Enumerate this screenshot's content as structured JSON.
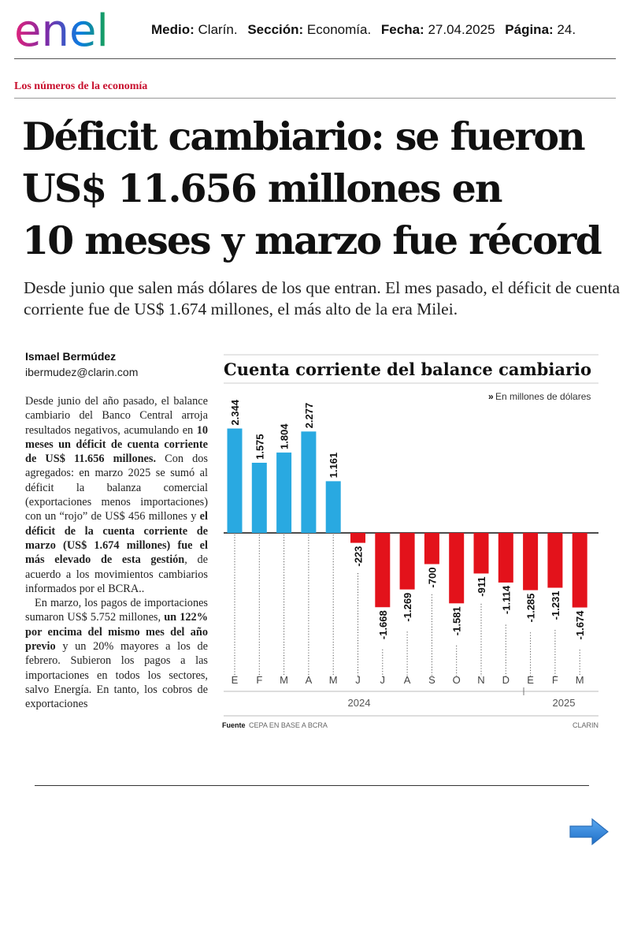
{
  "logo": {
    "text": "enel",
    "colors": [
      "#e1227a",
      "#7b2ca8",
      "#0a7ce0",
      "#18a44a"
    ]
  },
  "meta": {
    "medio_label": "Medio:",
    "medio": "Clarín.",
    "seccion_label": "Sección:",
    "seccion": "Economía.",
    "fecha_label": "Fecha:",
    "fecha": "27.04.2025",
    "pagina_label": "Página:",
    "pagina": "24."
  },
  "section": "Los números de la economía",
  "headline": [
    "Déficit cambiario: se fueron",
    "US$ 11.656 millones en",
    "10 meses y marzo fue récord"
  ],
  "subtitle": "Desde junio que salen más dólares de los que entran. El mes pasado, el déficit de cuenta corriente fue de US$ 1.674 millones, el más alto de la era Milei.",
  "author": {
    "name": "Ismael Bermúdez",
    "email": "ibermudez@clarin.com"
  },
  "body": {
    "p1_a": "Desde junio del año pasado, el balance cambiario del Banco Central arroja resultados negativos, acumulando en ",
    "p1_b": "10 meses un déficit de cuenta corriente de US$ 11.656 millones.",
    "p1_c": " Con dos agregados: en marzo 2025 se sumó al déficit la balanza comercial (exportaciones menos importaciones) con un “rojo” de US$ 456 millones y ",
    "p1_d": "el déficit de la cuenta corriente de marzo (US$ 1.674 millones) fue el más elevado de esta gestión",
    "p1_e": ", de acuerdo a los movimientos cambiarios informados por el BCRA..",
    "p2_a": "En marzo, los pagos de importaciones sumaron US$ 5.752 millones, ",
    "p2_b": "un 122% por encima del mismo mes del año previo",
    "p2_c": " y un 20% mayores a los de febrero. Subieron los pagos a las importaciones en todos los sectores, salvo Energía. En tanto, los cobros de exportaciones"
  },
  "chart_data": {
    "type": "bar",
    "title": "Cuenta corriente del balance cambiario",
    "unit_note": "En millones de dólares",
    "categories": [
      "E",
      "F",
      "M",
      "A",
      "M",
      "J",
      "J",
      "A",
      "S",
      "O",
      "N",
      "D",
      "E",
      "F",
      "M"
    ],
    "values": [
      2344,
      1575,
      1804,
      2277,
      1161,
      -223,
      -1668,
      -1269,
      -700,
      -1581,
      -911,
      -1114,
      -1285,
      -1231,
      -1674
    ],
    "value_labels": [
      "2.344",
      "1.575",
      "1.804",
      "2.277",
      "1.161",
      "-223",
      "-1.668",
      "-1.269",
      "-700",
      "-1.581",
      "-911",
      "-1.114",
      "-1.285",
      "-1.231",
      "-1.674"
    ],
    "year_labels": [
      "2024",
      "2025"
    ],
    "colors": {
      "positive": "#29a9e1",
      "negative": "#e3121b"
    },
    "source_label": "Fuente",
    "source": "CEPA EN BASE A BCRA",
    "credit": "CLARIN"
  },
  "nav": {
    "next_icon": "right-arrow-icon",
    "arrow_color": "#2a7fd6"
  }
}
